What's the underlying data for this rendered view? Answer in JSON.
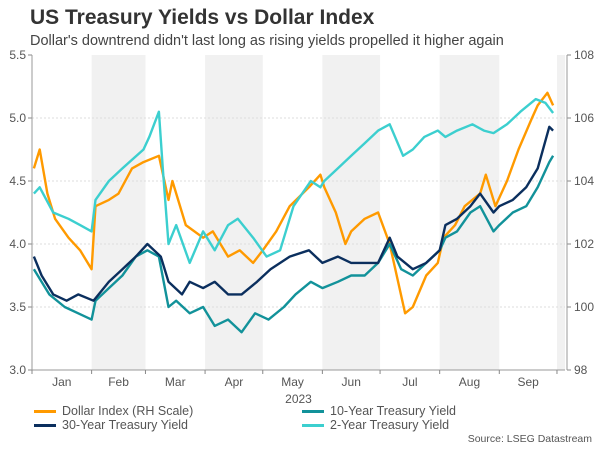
{
  "chart_data": {
    "type": "line",
    "title": "US Treasury Yields vs Dollar Index",
    "subtitle": "Dollar's downtrend didn't last long as rising yields propelled it higher again",
    "source": "Source: LSEG Datastream",
    "xlabel": "2023",
    "x_ticks": [
      "Jan",
      "Feb",
      "Mar",
      "Apr",
      "May",
      "Jun",
      "Jul",
      "Aug",
      "Sep"
    ],
    "y_left": {
      "range": [
        3.0,
        5.5
      ],
      "ticks": [
        "3.0",
        "3.5",
        "4.0",
        "4.5",
        "5.0",
        "5.5"
      ]
    },
    "y_right": {
      "range": [
        98,
        108
      ],
      "ticks": [
        "98",
        "100",
        "102",
        "104",
        "106",
        "108"
      ]
    },
    "grid": true,
    "shaded_months": [
      "Feb",
      "Apr",
      "Jun",
      "Aug",
      "Oct"
    ],
    "legend_placement": "bottom",
    "series": [
      {
        "name": "Dollar Index (RH Scale)",
        "axis": "right",
        "color": "#ff9a00",
        "dates": [
          "2023-01-02",
          "2023-01-05",
          "2023-01-09",
          "2023-01-13",
          "2023-01-20",
          "2023-01-26",
          "2023-02-01",
          "2023-02-03",
          "2023-02-10",
          "2023-02-15",
          "2023-02-22",
          "2023-02-28",
          "2023-03-08",
          "2023-03-13",
          "2023-03-15",
          "2023-03-22",
          "2023-03-31",
          "2023-04-05",
          "2023-04-13",
          "2023-04-19",
          "2023-04-26",
          "2023-05-01",
          "2023-05-08",
          "2023-05-15",
          "2023-05-25",
          "2023-05-31",
          "2023-06-02",
          "2023-06-08",
          "2023-06-13",
          "2023-06-16",
          "2023-06-23",
          "2023-06-30",
          "2023-07-06",
          "2023-07-14",
          "2023-07-18",
          "2023-07-25",
          "2023-07-31",
          "2023-08-03",
          "2023-08-09",
          "2023-08-14",
          "2023-08-22",
          "2023-08-25",
          "2023-08-30",
          "2023-09-05",
          "2023-09-11",
          "2023-09-18",
          "2023-09-21",
          "2023-09-26",
          "2023-09-29"
        ],
        "values": [
          104.4,
          105.0,
          103.6,
          102.8,
          102.2,
          101.8,
          101.2,
          103.2,
          103.4,
          103.6,
          104.4,
          104.6,
          104.8,
          103.4,
          104.0,
          102.6,
          102.2,
          102.4,
          101.6,
          101.8,
          101.4,
          101.8,
          102.4,
          103.2,
          103.8,
          104.2,
          103.8,
          103.0,
          102.0,
          102.4,
          102.8,
          103.0,
          102.0,
          99.8,
          100.0,
          101.0,
          101.4,
          102.2,
          102.6,
          103.2,
          103.6,
          104.2,
          103.2,
          104.0,
          105.0,
          106.0,
          106.4,
          106.8,
          106.4
        ]
      },
      {
        "name": "10-Year Treasury Yield",
        "axis": "left",
        "color": "#12929a",
        "dates": [
          "2023-01-02",
          "2023-01-10",
          "2023-01-18",
          "2023-01-25",
          "2023-02-01",
          "2023-02-03",
          "2023-02-10",
          "2023-02-17",
          "2023-02-24",
          "2023-03-02",
          "2023-03-08",
          "2023-03-13",
          "2023-03-17",
          "2023-03-24",
          "2023-03-31",
          "2023-04-06",
          "2023-04-13",
          "2023-04-20",
          "2023-04-27",
          "2023-05-04",
          "2023-05-12",
          "2023-05-18",
          "2023-05-26",
          "2023-06-01",
          "2023-06-09",
          "2023-06-16",
          "2023-06-23",
          "2023-06-30",
          "2023-07-06",
          "2023-07-12",
          "2023-07-18",
          "2023-07-25",
          "2023-08-01",
          "2023-08-04",
          "2023-08-10",
          "2023-08-17",
          "2023-08-22",
          "2023-08-29",
          "2023-09-01",
          "2023-09-08",
          "2023-09-15",
          "2023-09-21",
          "2023-09-27",
          "2023-09-29"
        ],
        "values": [
          3.8,
          3.6,
          3.5,
          3.45,
          3.4,
          3.55,
          3.65,
          3.75,
          3.9,
          3.95,
          3.9,
          3.5,
          3.55,
          3.45,
          3.5,
          3.35,
          3.4,
          3.3,
          3.45,
          3.4,
          3.5,
          3.6,
          3.7,
          3.65,
          3.7,
          3.75,
          3.75,
          3.85,
          4.0,
          3.8,
          3.75,
          3.85,
          3.95,
          4.05,
          4.1,
          4.25,
          4.3,
          4.1,
          4.15,
          4.25,
          4.3,
          4.45,
          4.65,
          4.7
        ]
      },
      {
        "name": "30-Year Treasury Yield",
        "axis": "left",
        "color": "#0b2f5e",
        "dates": [
          "2023-01-02",
          "2023-01-06",
          "2023-01-12",
          "2023-01-19",
          "2023-01-25",
          "2023-02-02",
          "2023-02-10",
          "2023-02-17",
          "2023-02-24",
          "2023-03-02",
          "2023-03-09",
          "2023-03-13",
          "2023-03-20",
          "2023-03-24",
          "2023-03-31",
          "2023-04-06",
          "2023-04-13",
          "2023-04-20",
          "2023-04-28",
          "2023-05-05",
          "2023-05-15",
          "2023-05-25",
          "2023-06-01",
          "2023-06-09",
          "2023-06-16",
          "2023-06-23",
          "2023-06-30",
          "2023-07-06",
          "2023-07-10",
          "2023-07-18",
          "2023-07-25",
          "2023-08-01",
          "2023-08-04",
          "2023-08-10",
          "2023-08-17",
          "2023-08-22",
          "2023-08-29",
          "2023-09-01",
          "2023-09-08",
          "2023-09-15",
          "2023-09-21",
          "2023-09-27",
          "2023-09-29"
        ],
        "values": [
          3.9,
          3.75,
          3.6,
          3.55,
          3.6,
          3.55,
          3.7,
          3.8,
          3.9,
          4.0,
          3.9,
          3.7,
          3.6,
          3.7,
          3.65,
          3.7,
          3.6,
          3.6,
          3.7,
          3.8,
          3.9,
          3.95,
          3.85,
          3.9,
          3.85,
          3.85,
          3.85,
          4.05,
          3.9,
          3.8,
          3.85,
          3.95,
          4.15,
          4.2,
          4.3,
          4.4,
          4.25,
          4.3,
          4.35,
          4.45,
          4.6,
          4.93,
          4.9
        ]
      },
      {
        "name": "2-Year Treasury Yield",
        "axis": "left",
        "color": "#3ccfcf",
        "dates": [
          "2023-01-02",
          "2023-01-05",
          "2023-01-12",
          "2023-01-20",
          "2023-01-26",
          "2023-02-01",
          "2023-02-03",
          "2023-02-10",
          "2023-02-17",
          "2023-02-28",
          "2023-03-03",
          "2023-03-08",
          "2023-03-10",
          "2023-03-13",
          "2023-03-17",
          "2023-03-24",
          "2023-03-31",
          "2023-04-06",
          "2023-04-13",
          "2023-04-18",
          "2023-04-26",
          "2023-05-03",
          "2023-05-10",
          "2023-05-17",
          "2023-05-26",
          "2023-05-31",
          "2023-06-02",
          "2023-06-09",
          "2023-06-16",
          "2023-06-23",
          "2023-06-30",
          "2023-07-06",
          "2023-07-13",
          "2023-07-18",
          "2023-07-24",
          "2023-07-31",
          "2023-08-04",
          "2023-08-10",
          "2023-08-18",
          "2023-08-24",
          "2023-08-29",
          "2023-09-05",
          "2023-09-12",
          "2023-09-20",
          "2023-09-25",
          "2023-09-29"
        ],
        "values": [
          4.4,
          4.45,
          4.25,
          4.2,
          4.15,
          4.1,
          4.35,
          4.5,
          4.6,
          4.75,
          4.85,
          5.05,
          4.6,
          4.0,
          4.15,
          3.85,
          4.1,
          3.95,
          4.15,
          4.2,
          4.05,
          3.9,
          3.95,
          4.3,
          4.5,
          4.45,
          4.5,
          4.6,
          4.7,
          4.8,
          4.9,
          4.95,
          4.7,
          4.75,
          4.85,
          4.9,
          4.85,
          4.9,
          4.95,
          4.9,
          4.88,
          4.95,
          5.05,
          5.15,
          5.12,
          5.04
        ]
      }
    ]
  }
}
